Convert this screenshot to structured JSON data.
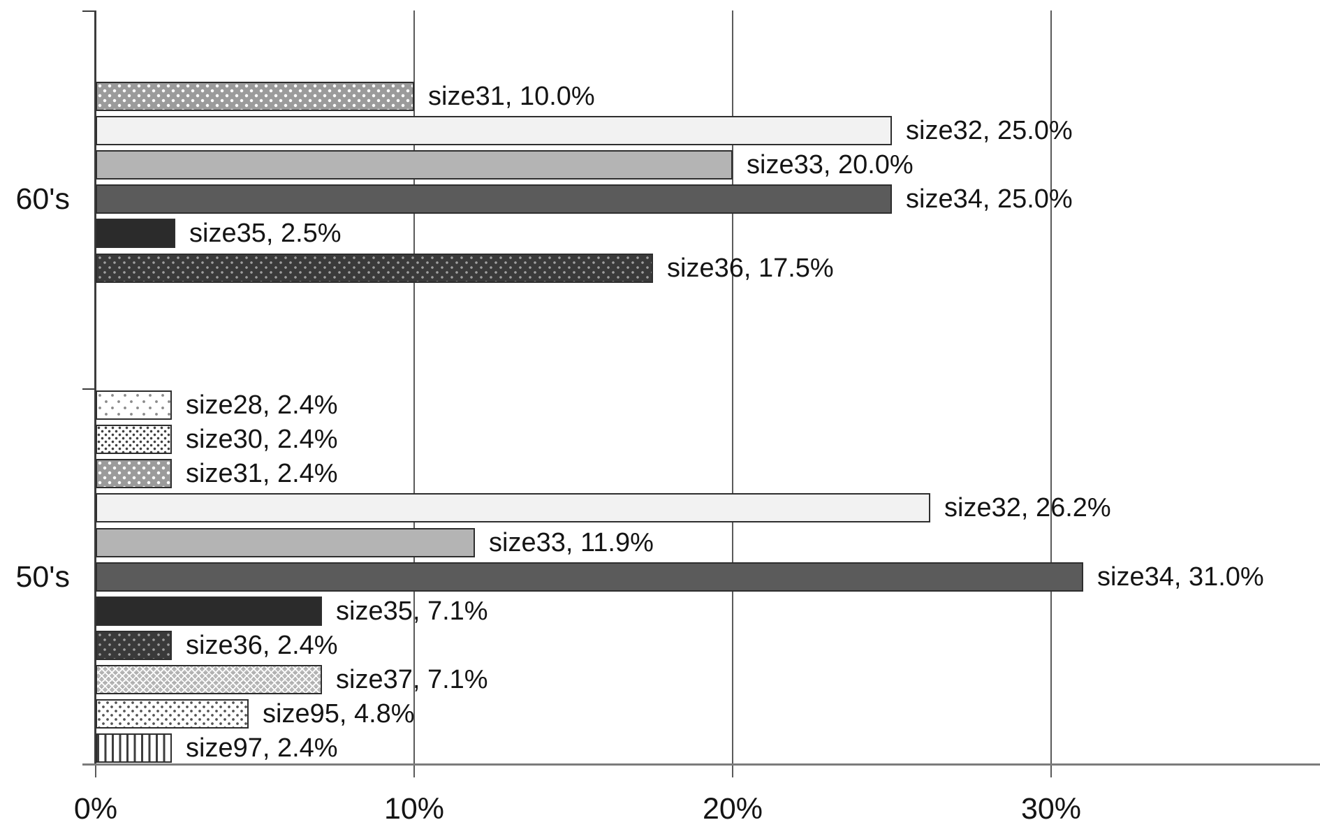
{
  "chart_data": {
    "type": "bar",
    "orientation": "horizontal",
    "title": "",
    "xlabel": "",
    "ylabel": "",
    "grid": true,
    "x_axis": {
      "tick_labels": [
        "0%",
        "10%",
        "20%",
        "30%"
      ],
      "tick_values": [
        0,
        10,
        20,
        30
      ],
      "max_value": 38.5
    },
    "categories": [
      "60's",
      "50's"
    ],
    "series_order": [
      "size28",
      "size30",
      "size31",
      "size32",
      "size33",
      "size34",
      "size35",
      "size36",
      "size37",
      "size95",
      "size97"
    ],
    "groups": [
      {
        "category": "60's",
        "bars": [
          {
            "name": "size31",
            "value": 10.0,
            "label": "size31, 10.0%"
          },
          {
            "name": "size32",
            "value": 25.0,
            "label": "size32, 25.0%"
          },
          {
            "name": "size33",
            "value": 20.0,
            "label": "size33, 20.0%"
          },
          {
            "name": "size34",
            "value": 25.0,
            "label": "size34, 25.0%"
          },
          {
            "name": "size35",
            "value": 2.5,
            "label": "size35, 2.5%"
          },
          {
            "name": "size36",
            "value": 17.5,
            "label": "size36, 17.5%"
          }
        ]
      },
      {
        "category": "50's",
        "bars": [
          {
            "name": "size28",
            "value": 2.4,
            "label": "size28, 2.4%"
          },
          {
            "name": "size30",
            "value": 2.4,
            "label": "size30, 2.4%"
          },
          {
            "name": "size31",
            "value": 2.4,
            "label": "size31, 2.4%"
          },
          {
            "name": "size32",
            "value": 26.2,
            "label": "size32, 26.2%"
          },
          {
            "name": "size33",
            "value": 11.9,
            "label": "size33, 11.9%"
          },
          {
            "name": "size34",
            "value": 31.0,
            "label": "size34, 31.0%"
          },
          {
            "name": "size35",
            "value": 7.1,
            "label": "size35, 7.1%"
          },
          {
            "name": "size36",
            "value": 2.4,
            "label": "size36, 2.4%"
          },
          {
            "name": "size37",
            "value": 7.1,
            "label": "size37, 7.1%"
          },
          {
            "name": "size95",
            "value": 4.8,
            "label": "size95, 4.8%"
          },
          {
            "name": "size97",
            "value": 2.4,
            "label": "size97, 2.4%"
          }
        ]
      }
    ],
    "series_fills": {
      "size28": {
        "pattern": "sparse-dots",
        "bg": "#ffffff",
        "fg": "#8a8a8a"
      },
      "size30": {
        "pattern": "dense-dots",
        "bg": "#ffffff",
        "fg": "#3f3f3f"
      },
      "size31": {
        "pattern": "white-dots-on-gray",
        "bg": "#9b9b9b",
        "fg": "#ffffff"
      },
      "size32": {
        "pattern": "solid",
        "bg": "#f2f2f2"
      },
      "size33": {
        "pattern": "solid",
        "bg": "#b4b4b4"
      },
      "size34": {
        "pattern": "solid",
        "bg": "#5b5b5b"
      },
      "size35": {
        "pattern": "solid",
        "bg": "#2b2b2b"
      },
      "size36": {
        "pattern": "light-dots-on-dark",
        "bg": "#3a3a3a",
        "fg": "#9f9f9f"
      },
      "size37": {
        "pattern": "diamond-weave",
        "bg": "#b9b9b9",
        "fg": "#ffffff"
      },
      "size95": {
        "pattern": "medium-dots",
        "bg": "#ffffff",
        "fg": "#555555"
      },
      "size97": {
        "pattern": "vertical-stripes",
        "bg": "#ffffff",
        "fg": "#3d3d3d"
      }
    },
    "bar_border_color": "#2e2e2e",
    "text_color": "#141414",
    "gridline_color": "#5a5a5a",
    "axis_color": "#3c3c3c"
  }
}
